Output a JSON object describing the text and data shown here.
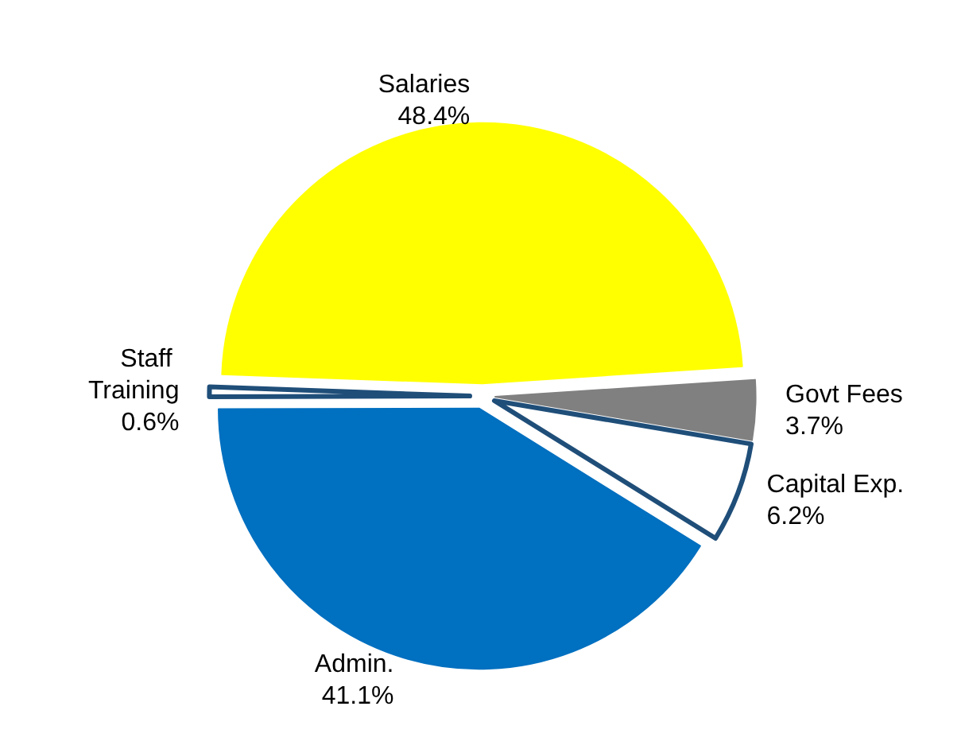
{
  "chart_data": {
    "type": "pie",
    "categories": [
      "Salaries",
      "Govt Fees",
      "Capital Exp.",
      "Admin.",
      "Staff Training"
    ],
    "values": [
      48.4,
      3.7,
      6.2,
      41.1,
      0.6
    ],
    "colors": [
      "#ffff00",
      "#808080",
      "#ffffff",
      "#0070c0",
      "#ffffff"
    ],
    "value_labels": [
      "48.4%",
      "3.7%",
      "6.2%",
      "41.1%",
      "0.6%"
    ],
    "legend": false
  }
}
